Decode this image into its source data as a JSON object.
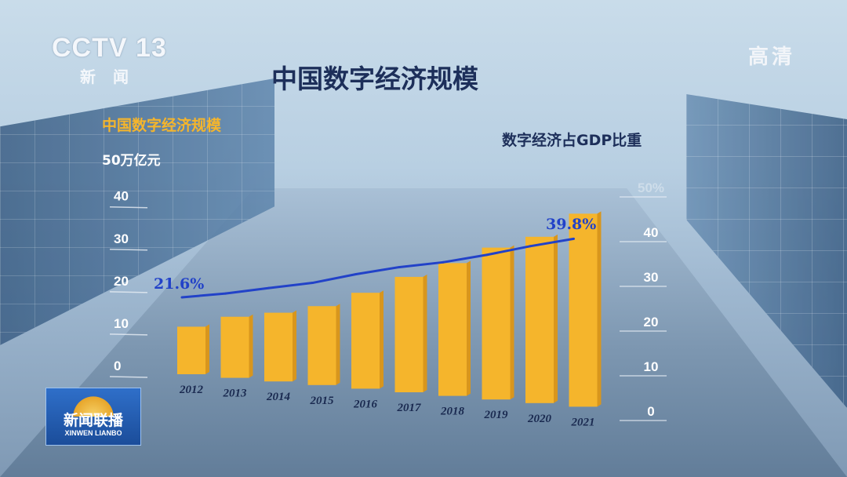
{
  "broadcast": {
    "channel_logo": "CCTV 13",
    "channel_sub": "新闻",
    "quality": "高清",
    "program_cn": "新闻联播",
    "program_en": "XINWEN LIANBO"
  },
  "colors": {
    "bars": "#f5b52c",
    "line": "#2242c8",
    "title": "#1d2f5a"
  },
  "chart_data": {
    "type": "bar",
    "title": "中国数字经济规模",
    "left_axis_label": "中国数字经济规模",
    "left_axis_unit": "50万亿元",
    "right_axis_label": "数字经济占GDP比重",
    "categories": [
      "2012",
      "2013",
      "2014",
      "2015",
      "2016",
      "2017",
      "2018",
      "2019",
      "2020",
      "2021"
    ],
    "series": [
      {
        "name": "中国数字经济规模",
        "axis": "left",
        "type": "bar",
        "values": [
          11.2,
          14.4,
          16.2,
          18.6,
          22.6,
          27.2,
          31.3,
          35.8,
          39.2,
          45.5
        ]
      },
      {
        "name": "数字经济占GDP比重",
        "axis": "right",
        "type": "line",
        "values": [
          21.6,
          22.8,
          24.5,
          26.1,
          28.8,
          31.0,
          32.5,
          34.8,
          37.5,
          39.8
        ]
      }
    ],
    "left_ylim": [
      0,
      50
    ],
    "left_ticks": [
      "0",
      "10",
      "20",
      "30",
      "40"
    ],
    "right_ylim": [
      0,
      50
    ],
    "right_ticks": [
      "0",
      "10",
      "20",
      "30",
      "40",
      "50%"
    ],
    "annotations": [
      "21.6%",
      "39.8%"
    ]
  }
}
